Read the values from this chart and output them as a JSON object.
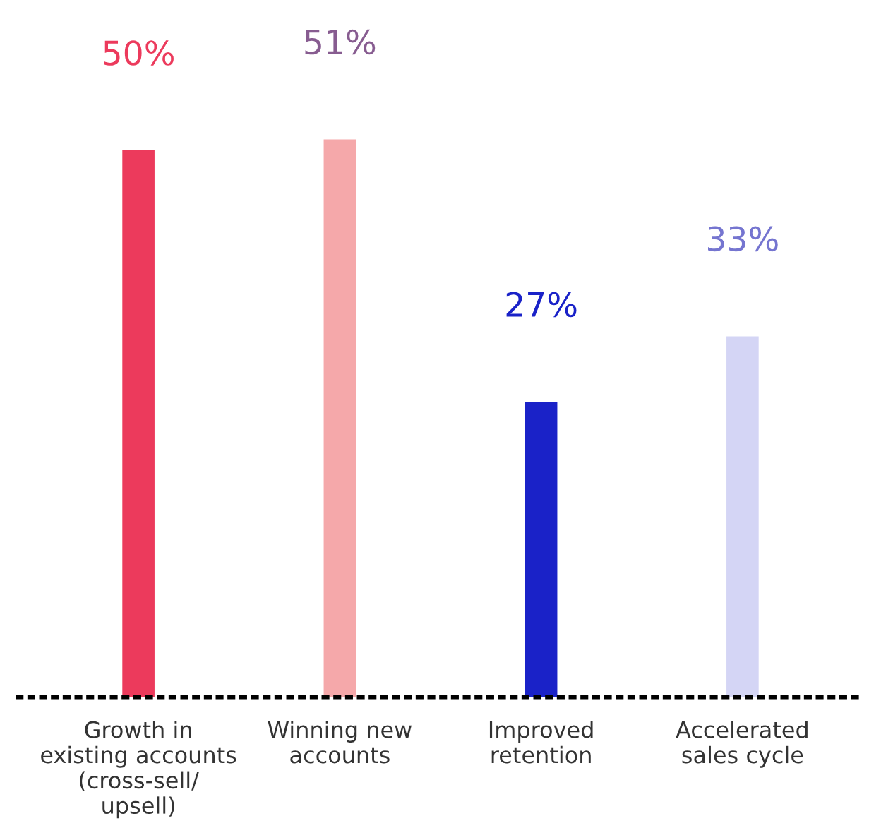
{
  "chart_data": {
    "type": "bar",
    "categories": [
      "Growth in\nexisting accounts\n(cross-sell/\nupsell)",
      "Winning new\naccounts",
      "Improved\nretention",
      "Accelerated\nsales cycle"
    ],
    "values": [
      50,
      51,
      27,
      33
    ],
    "colors": [
      "#ec3a5c",
      "#f5a8aa",
      "#1a22c8",
      "#d4d5f5"
    ],
    "value_labels": [
      "50%",
      "51%",
      "27%",
      "33%"
    ],
    "grid": false,
    "legend": false
  }
}
